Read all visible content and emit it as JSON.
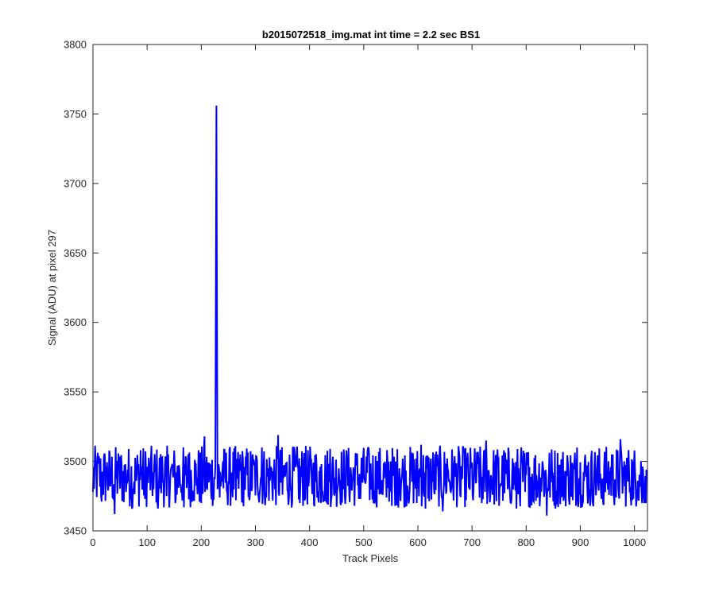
{
  "chart_data": {
    "type": "line",
    "title": "b2015072518_img.mat int time = 2.2 sec   BS1",
    "xlabel": "Track Pixels",
    "ylabel": "Signal (ADU) at pixel 297",
    "xlim": [
      0,
      1024
    ],
    "ylim": [
      3450,
      3800
    ],
    "xticks": [
      0,
      100,
      200,
      300,
      400,
      500,
      600,
      700,
      800,
      900,
      1000
    ],
    "yticks": [
      3450,
      3500,
      3550,
      3600,
      3650,
      3700,
      3750,
      3800
    ],
    "grid": false,
    "series": [
      {
        "color": "#0000ff",
        "description": "noisy baseline around 3489 ADU (range ~3461-3520) with one spike",
        "baseline_mean": 3489,
        "noise_range": [
          3461,
          3520
        ],
        "x": [
          0,
          8,
          16,
          24,
          32,
          40,
          48,
          56,
          64,
          72,
          80,
          88,
          96,
          104,
          112,
          120,
          128,
          136,
          144,
          152,
          160,
          168,
          176,
          184,
          192,
          200,
          206,
          214,
          222,
          226,
          228,
          230,
          234,
          240,
          248,
          256,
          264,
          272,
          280,
          288,
          296,
          304,
          312,
          320,
          328,
          336,
          342,
          350,
          358,
          366,
          374,
          382,
          390,
          398,
          406,
          414,
          422,
          430,
          438,
          446,
          454,
          462,
          470,
          478,
          486,
          494,
          502,
          510,
          518,
          526,
          534,
          542,
          550,
          558,
          566,
          574,
          582,
          590,
          598,
          606,
          614,
          622,
          630,
          638,
          646,
          654,
          662,
          670,
          678,
          686,
          694,
          702,
          710,
          718,
          726,
          734,
          742,
          750,
          758,
          766,
          774,
          782,
          790,
          798,
          806,
          814,
          822,
          830,
          838,
          846,
          854,
          862,
          870,
          878,
          886,
          894,
          902,
          910,
          918,
          926,
          934,
          942,
          950,
          958,
          966,
          974,
          982,
          990,
          998,
          1006,
          1014,
          1022
        ],
        "y": [
          3478,
          3502,
          3471,
          3496,
          3482,
          3462,
          3500,
          3476,
          3494,
          3466,
          3486,
          3508,
          3473,
          3497,
          3480,
          3466,
          3503,
          3475,
          3495,
          3470,
          3492,
          3467,
          3505,
          3479,
          3488,
          3470,
          3518,
          3485,
          3476,
          3496,
          3756,
          3480,
          3474,
          3500,
          3478,
          3492,
          3472,
          3505,
          3484,
          3476,
          3498,
          3482,
          3510,
          3474,
          3494,
          3480,
          3519,
          3476,
          3499,
          3478,
          3496,
          3470,
          3506,
          3482,
          3491,
          3474,
          3498,
          3472,
          3509,
          3476,
          3495,
          3480,
          3503,
          3479,
          3497,
          3473,
          3486,
          3505,
          3470,
          3494,
          3486,
          3474,
          3500,
          3468,
          3495,
          3482,
          3475,
          3503,
          3470,
          3512,
          3466,
          3497,
          3478,
          3488,
          3464,
          3502,
          3481,
          3494,
          3476,
          3506,
          3482,
          3472,
          3498,
          3470,
          3515,
          3476,
          3494,
          3468,
          3502,
          3480,
          3490,
          3466,
          3502,
          3478,
          3496,
          3471,
          3486,
          3500,
          3461,
          3485,
          3466,
          3497,
          3475,
          3492,
          3472,
          3510,
          3476,
          3495,
          3468,
          3497,
          3479,
          3470,
          3488,
          3505,
          3474,
          3516,
          3482,
          3495,
          3473,
          3486,
          3470,
          3494
        ]
      }
    ]
  }
}
